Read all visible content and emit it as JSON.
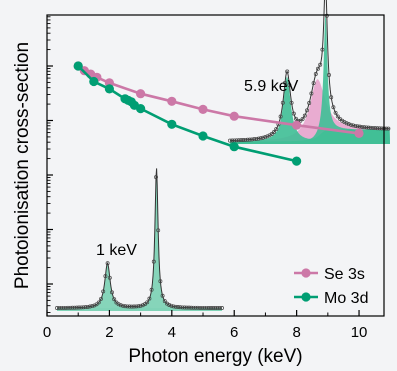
{
  "chart_data": {
    "type": "line",
    "xlabel": "Photon energy (keV)",
    "ylabel": "Photoionisation cross-section",
    "xlim": [
      0,
      10.8
    ],
    "x_ticks": [
      "0",
      "2",
      "4",
      "6",
      "8",
      "10"
    ],
    "y_scale": "log",
    "y_ticks_labeled": false,
    "legend_position": "bottom-right",
    "series": [
      {
        "name": "Se 3s",
        "color": "#cc78a7",
        "x": [
          1.0,
          1.2,
          1.4,
          1.6,
          2.0,
          3.0,
          4.0,
          5.0,
          6.0,
          8.0,
          10.0
        ],
        "y": [
          1.0,
          0.82,
          0.71,
          0.62,
          0.49,
          0.31,
          0.225,
          0.16,
          0.12,
          0.082,
          0.058
        ]
      },
      {
        "name": "Mo 3d",
        "color": "#009e73",
        "x": [
          1.0,
          1.5,
          2.0,
          2.5,
          2.6,
          2.7,
          2.8,
          3.0,
          4.0,
          5.0,
          6.0,
          8.0
        ],
        "y": [
          1.0,
          0.52,
          0.38,
          0.25,
          0.235,
          0.22,
          0.19,
          0.165,
          0.085,
          0.052,
          0.033,
          0.018
        ]
      }
    ],
    "insets": [
      {
        "label": "5.9 keV",
        "fill": "#e8a8cf"
      },
      {
        "label": "1 keV",
        "fill": "#7fd3b6"
      }
    ]
  }
}
